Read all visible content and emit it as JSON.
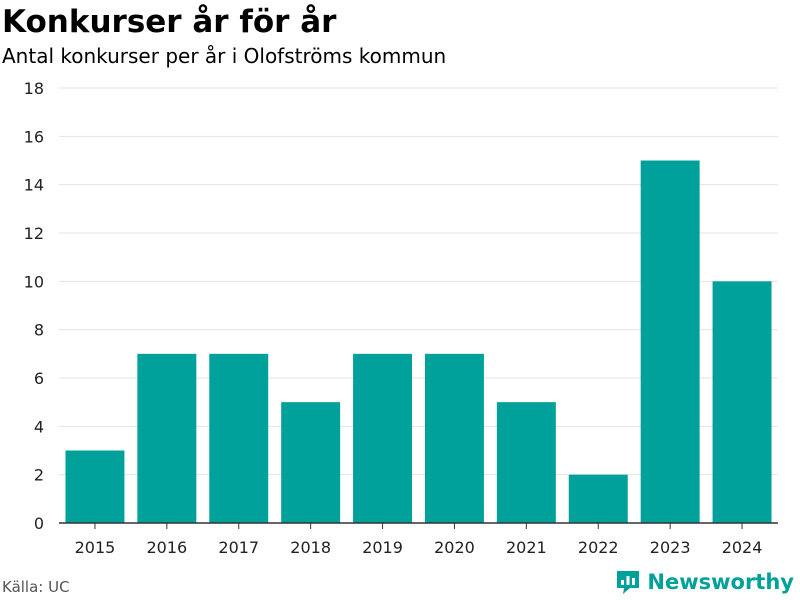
{
  "header": {
    "title": "Konkurser år för år",
    "subtitle": "Antal konkurser per år i Olofströms kommun"
  },
  "footer": {
    "source": "Källa: UC",
    "brand": "Newsworthy"
  },
  "colors": {
    "bar": "#00a19a",
    "brand": "#00a19a",
    "grid": "#e3e3e3",
    "axis": "#333333"
  },
  "chart_data": {
    "type": "bar",
    "categories": [
      "2015",
      "2016",
      "2017",
      "2018",
      "2019",
      "2020",
      "2021",
      "2022",
      "2023",
      "2024"
    ],
    "values": [
      3,
      7,
      7,
      5,
      7,
      7,
      5,
      2,
      15,
      10
    ],
    "xlabel": "",
    "ylabel": "",
    "ylim": [
      0,
      18
    ],
    "yticks": [
      0,
      2,
      4,
      6,
      8,
      10,
      12,
      14,
      16,
      18
    ],
    "grid": true,
    "legend": "none"
  }
}
